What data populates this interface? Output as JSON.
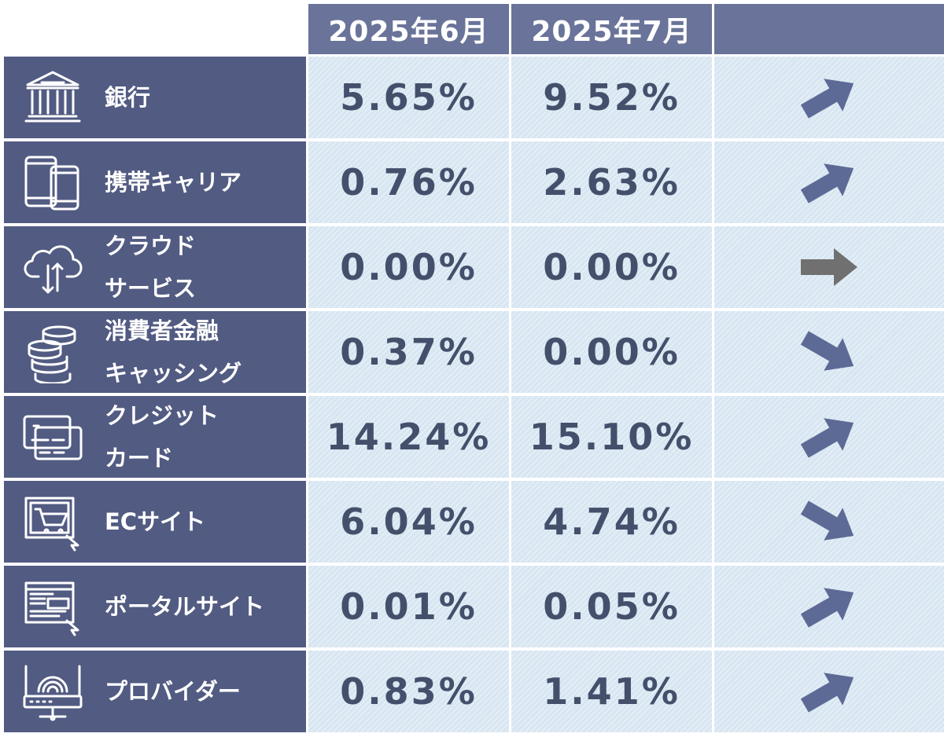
{
  "chart_data": {
    "type": "table",
    "columns": [
      "2025年6月",
      "2025年7月",
      ""
    ],
    "rows": [
      {
        "icon": "bank-icon",
        "label_lines": [
          "銀行"
        ],
        "jun": "5.65%",
        "jul": "9.52%",
        "trend": "up"
      },
      {
        "icon": "smartphone-icon",
        "label_lines": [
          "携帯キャリア"
        ],
        "jun": "0.76%",
        "jul": "2.63%",
        "trend": "up"
      },
      {
        "icon": "cloud-sync-icon",
        "label_lines": [
          "クラウド",
          "サービス"
        ],
        "jun": "0.00%",
        "jul": "0.00%",
        "trend": "flat"
      },
      {
        "icon": "coin-stack-icon",
        "label_lines": [
          "消費者金融",
          "キャッシング"
        ],
        "jun": "0.37%",
        "jul": "0.00%",
        "trend": "down"
      },
      {
        "icon": "credit-card-icon",
        "label_lines": [
          "クレジット",
          "カード"
        ],
        "jun": "14.24%",
        "jul": "15.10%",
        "trend": "up"
      },
      {
        "icon": "shopping-cart-icon",
        "label_lines": [
          "ECサイト"
        ],
        "jun": "6.04%",
        "jul": "4.74%",
        "trend": "down"
      },
      {
        "icon": "web-portal-icon",
        "label_lines": [
          "ポータルサイト"
        ],
        "jun": "0.01%",
        "jul": "0.05%",
        "trend": "up"
      },
      {
        "icon": "router-icon",
        "label_lines": [
          "プロバイダー"
        ],
        "jun": "0.83%",
        "jul": "1.41%",
        "trend": "up"
      }
    ]
  },
  "colors": {
    "header_bg": "#6a7399",
    "label_bg": "#525b82",
    "cell_bg": "#d8e6f2",
    "value_text": "#44506b",
    "arrow_up_down": "#5d6a96",
    "arrow_flat": "#707070"
  }
}
